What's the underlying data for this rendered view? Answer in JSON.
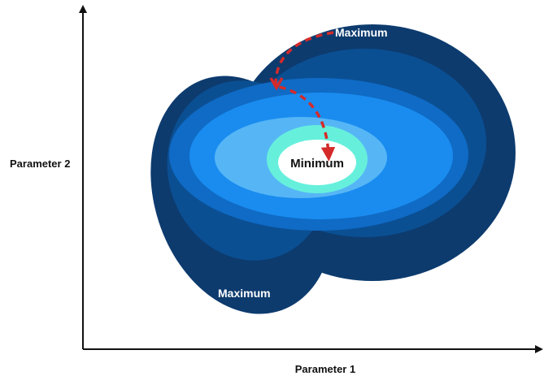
{
  "axes": {
    "x_label": "Parameter 1",
    "y_label": "Parameter 2"
  },
  "labels": {
    "maximum_top": "Maximum",
    "maximum_bottom": "Maximum",
    "minimum": "Minimum"
  },
  "colors": {
    "axis": "#111111",
    "level_outer": "#0d3b6e",
    "level_2": "#0b4f93",
    "level_3": "#0f6bc5",
    "level_4": "#1a8cf0",
    "level_5": "#56b6f5",
    "level_6": "#66f0dc",
    "center": "#ffffff",
    "path_arrow": "#d42a2a",
    "label_light": "#ffffff",
    "label_dark": "#111111"
  },
  "icons": {
    "path_arrow": "dashed-arrow-icon"
  }
}
